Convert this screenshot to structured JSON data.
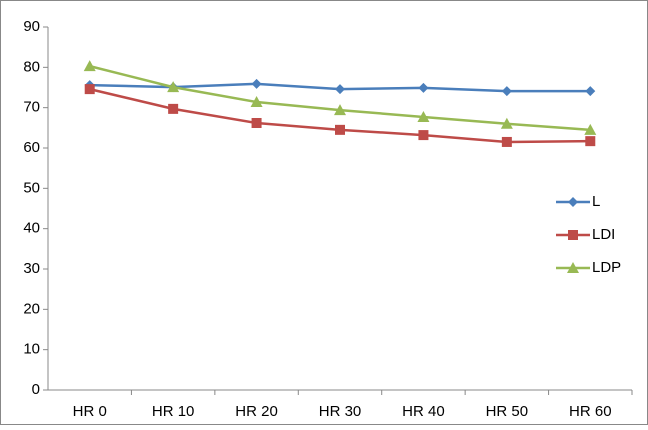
{
  "chart_data": {
    "type": "line",
    "categories": [
      "HR 0",
      "HR 10",
      "HR 20",
      "HR 30",
      "HR 40",
      "HR 50",
      "HR 60"
    ],
    "series": [
      {
        "name": "L",
        "color": "#4a7ebb",
        "marker": "diamond",
        "values": [
          75.6,
          75.1,
          75.9,
          74.6,
          74.9,
          74.1,
          74.1
        ]
      },
      {
        "name": "LDI",
        "color": "#be4b48",
        "marker": "square",
        "values": [
          74.6,
          69.7,
          66.2,
          64.5,
          63.2,
          61.5,
          61.7
        ]
      },
      {
        "name": "LDP",
        "color": "#98b954",
        "marker": "triangle",
        "values": [
          80.3,
          75.1,
          71.4,
          69.4,
          67.7,
          66.0,
          64.5
        ]
      }
    ],
    "ylim": [
      0,
      90
    ],
    "yticks": [
      0,
      10,
      20,
      30,
      40,
      50,
      60,
      70,
      80,
      90
    ],
    "grid": false,
    "legend": "right"
  }
}
